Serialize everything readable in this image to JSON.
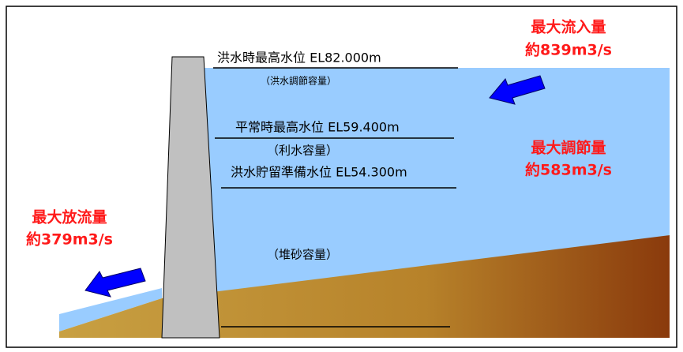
{
  "levels": [
    {
      "label": "洪水時最高水位  EL82.000m"
    },
    {
      "label": "平常時最高水位  EL59.400m"
    },
    {
      "label": "洪水貯留準備水位  EL54.300m"
    }
  ],
  "capacities": {
    "flood_control": "（洪水調節容量）",
    "water_use": "（利水容量）",
    "sediment": "（堆砂容量）"
  },
  "flows": {
    "inflow": {
      "title": "最大流入量",
      "value": "約839m3/s"
    },
    "regulated": {
      "title": "最大調節量",
      "value": "約583m3/s"
    },
    "outflow": {
      "title": "最大放流量",
      "value": "約379m3/s"
    }
  }
}
